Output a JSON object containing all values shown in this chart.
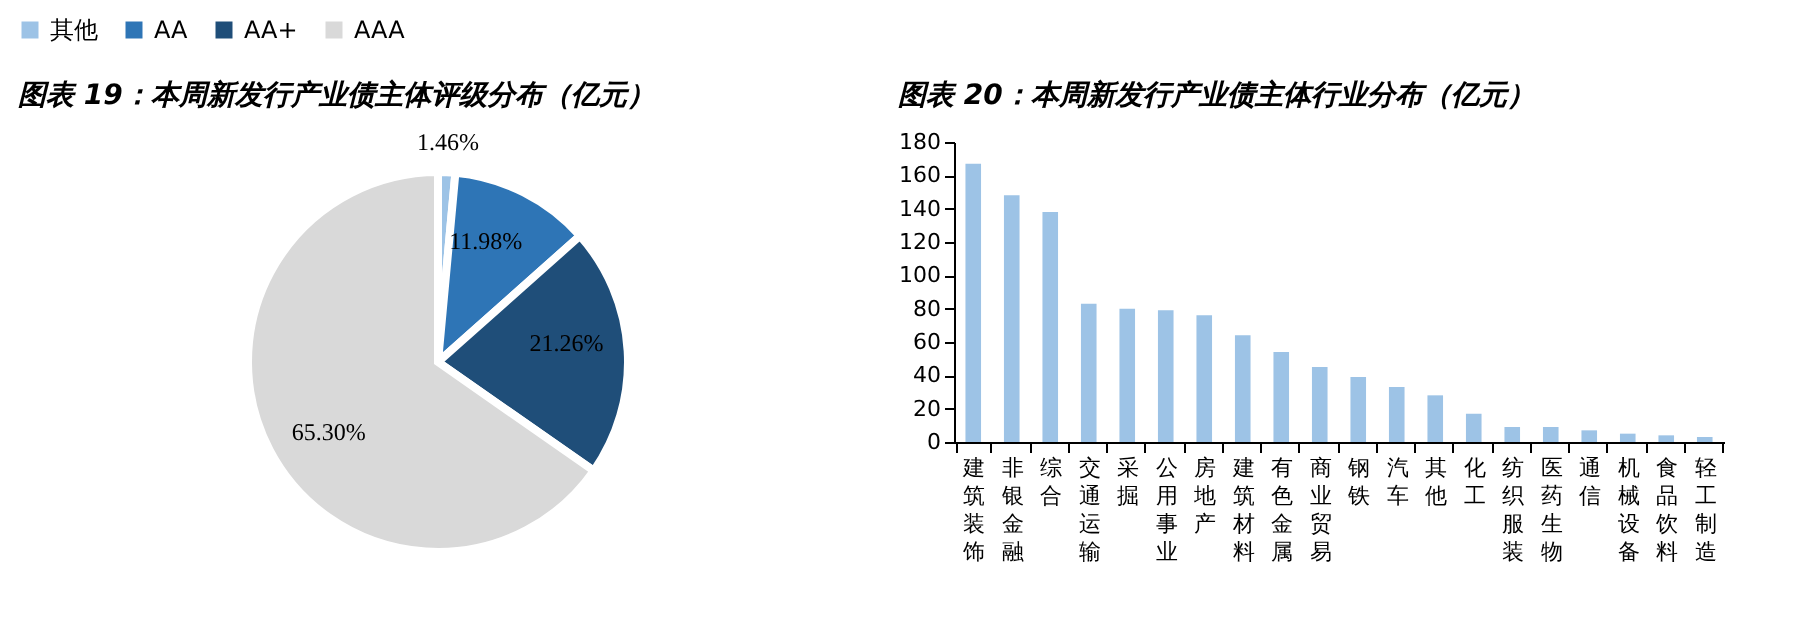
{
  "chart_data": [
    {
      "type": "pie",
      "title": "图表 19：本周新发行产业债主体评级分布（亿元）",
      "categories": [
        "其他",
        "AA",
        "AA+",
        "AAA"
      ],
      "values": [
        1.46,
        11.98,
        21.26,
        65.3
      ],
      "colors": [
        "#9dc3e6",
        "#2e75b6",
        "#1f4e79",
        "#d9d9d9"
      ],
      "value_labels": [
        "1.46%",
        "11.98%",
        "21.26%",
        "65.30%"
      ],
      "legend": "top"
    },
    {
      "type": "bar",
      "title": "图表 20：本周新发行产业债主体行业分布（亿元）",
      "categories": [
        "建筑装饰",
        "非银金融",
        "综合",
        "交通运输",
        "采掘",
        "公用事业",
        "房地产",
        "建筑材料",
        "有色金属",
        "商业贸易",
        "钢铁",
        "汽车",
        "其他",
        "化工",
        "纺织服装",
        "医药生物",
        "通信",
        "机械设备",
        "食品饮料",
        "轻工制造"
      ],
      "values": [
        167,
        148,
        138,
        83,
        80,
        79,
        76,
        64,
        54,
        45,
        39,
        33,
        28,
        17,
        9,
        9,
        7,
        5,
        4,
        3
      ],
      "color": "#9dc3e6",
      "ylim": [
        0,
        180
      ],
      "yticks": [
        0,
        20,
        40,
        60,
        80,
        100,
        120,
        140,
        160,
        180
      ]
    }
  ]
}
